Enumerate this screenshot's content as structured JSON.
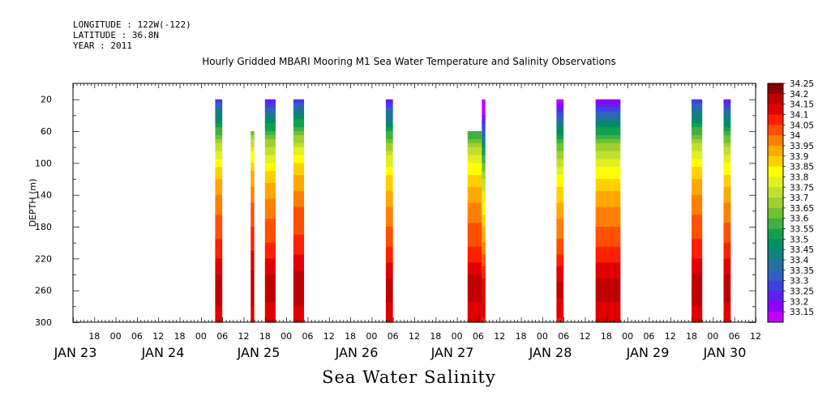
{
  "header": {
    "longitude": "LONGITUDE : 122W(-122)",
    "latitude": "LATITUDE : 36.8N",
    "year": "YEAR : 2011"
  },
  "chart_title": "Hourly Gridded MBARI Mooring M1 Sea Water Temperature and Salinity Observations",
  "bottom_title": "Sea Water Salinity",
  "chart_data": {
    "type": "heatmap",
    "title": "Hourly Gridded MBARI Mooring M1 Sea Water Temperature and Salinity Observations",
    "xlabel": "",
    "ylabel": "DEPTH (m)",
    "x_unit": "hours after JAN 23 00:00 2011",
    "x_range": [
      -12,
      180
    ],
    "ylim": [
      300,
      0
    ],
    "y_ticks": [
      20,
      60,
      100,
      140,
      180,
      220,
      260,
      300
    ],
    "x_hour_tick_labels": [
      "18",
      "00",
      "06",
      "12",
      "18",
      "00",
      "06",
      "12",
      "18",
      "00",
      "06",
      "12",
      "18",
      "00",
      "06",
      "12",
      "18",
      "00",
      "06",
      "12",
      "18",
      "00",
      "06",
      "12",
      "18",
      "00",
      "06",
      "12",
      "18",
      "00",
      "06",
      "12"
    ],
    "x_day_labels": [
      "JAN 23",
      "JAN 24",
      "JAN 25",
      "JAN 26",
      "JAN 27",
      "JAN 28",
      "JAN 29",
      "JAN 30"
    ],
    "colorbar": {
      "levels": [
        "34.25",
        "34.2",
        "34.15",
        "34.1",
        "34.05",
        "34",
        "33.95",
        "33.9",
        "33.85",
        "33.8",
        "33.75",
        "33.7",
        "33.65",
        "33.6",
        "33.55",
        "33.5",
        "33.45",
        "33.4",
        "33.35",
        "33.3",
        "33.25",
        "33.2",
        "33.15"
      ],
      "colors": [
        "#8b0000",
        "#c00000",
        "#e00000",
        "#ff2000",
        "#ff5000",
        "#ff8000",
        "#ffa800",
        "#ffd000",
        "#ffff00",
        "#e0f020",
        "#c0e030",
        "#a0d030",
        "#70c030",
        "#40b040",
        "#10a050",
        "#009060",
        "#108080",
        "#2070a0",
        "#3060c0",
        "#4040e0",
        "#6020f0",
        "#9000ff",
        "#c000ff"
      ]
    },
    "profile": {
      "depths": [
        20,
        40,
        60,
        80,
        100,
        120,
        140,
        160,
        180,
        200,
        220,
        240,
        260,
        280,
        300
      ],
      "values": [
        33.25,
        33.45,
        33.6,
        33.75,
        33.85,
        33.92,
        33.97,
        34.02,
        34.05,
        34.08,
        34.13,
        34.18,
        34.21,
        34.17,
        34.12
      ]
    },
    "blocks": [
      {
        "x_start": 28,
        "x_end": 30,
        "depth_top": 20,
        "shift": 0.0
      },
      {
        "x_start": 38,
        "x_end": 39,
        "depth_top": 60,
        "shift": 0.05
      },
      {
        "x_start": 42,
        "x_end": 45,
        "depth_top": 20,
        "shift": -0.02
      },
      {
        "x_start": 50,
        "x_end": 53,
        "depth_top": 20,
        "shift": 0.03
      },
      {
        "x_start": 76,
        "x_end": 78,
        "depth_top": 20,
        "shift": -0.05
      },
      {
        "x_start": 99,
        "x_end": 103,
        "depth_top": 60,
        "shift": -0.04
      },
      {
        "x_start": 103,
        "x_end": 104,
        "depth_top": 20,
        "shift": -0.3
      },
      {
        "x_start": 124,
        "x_end": 126,
        "depth_top": 20,
        "shift": -0.12
      },
      {
        "x_start": 135,
        "x_end": 142,
        "depth_top": 20,
        "shift": -0.06
      },
      {
        "x_start": 162,
        "x_end": 165,
        "depth_top": 20,
        "shift": 0.0
      },
      {
        "x_start": 171,
        "x_end": 173,
        "depth_top": 20,
        "shift": -0.03
      }
    ]
  }
}
